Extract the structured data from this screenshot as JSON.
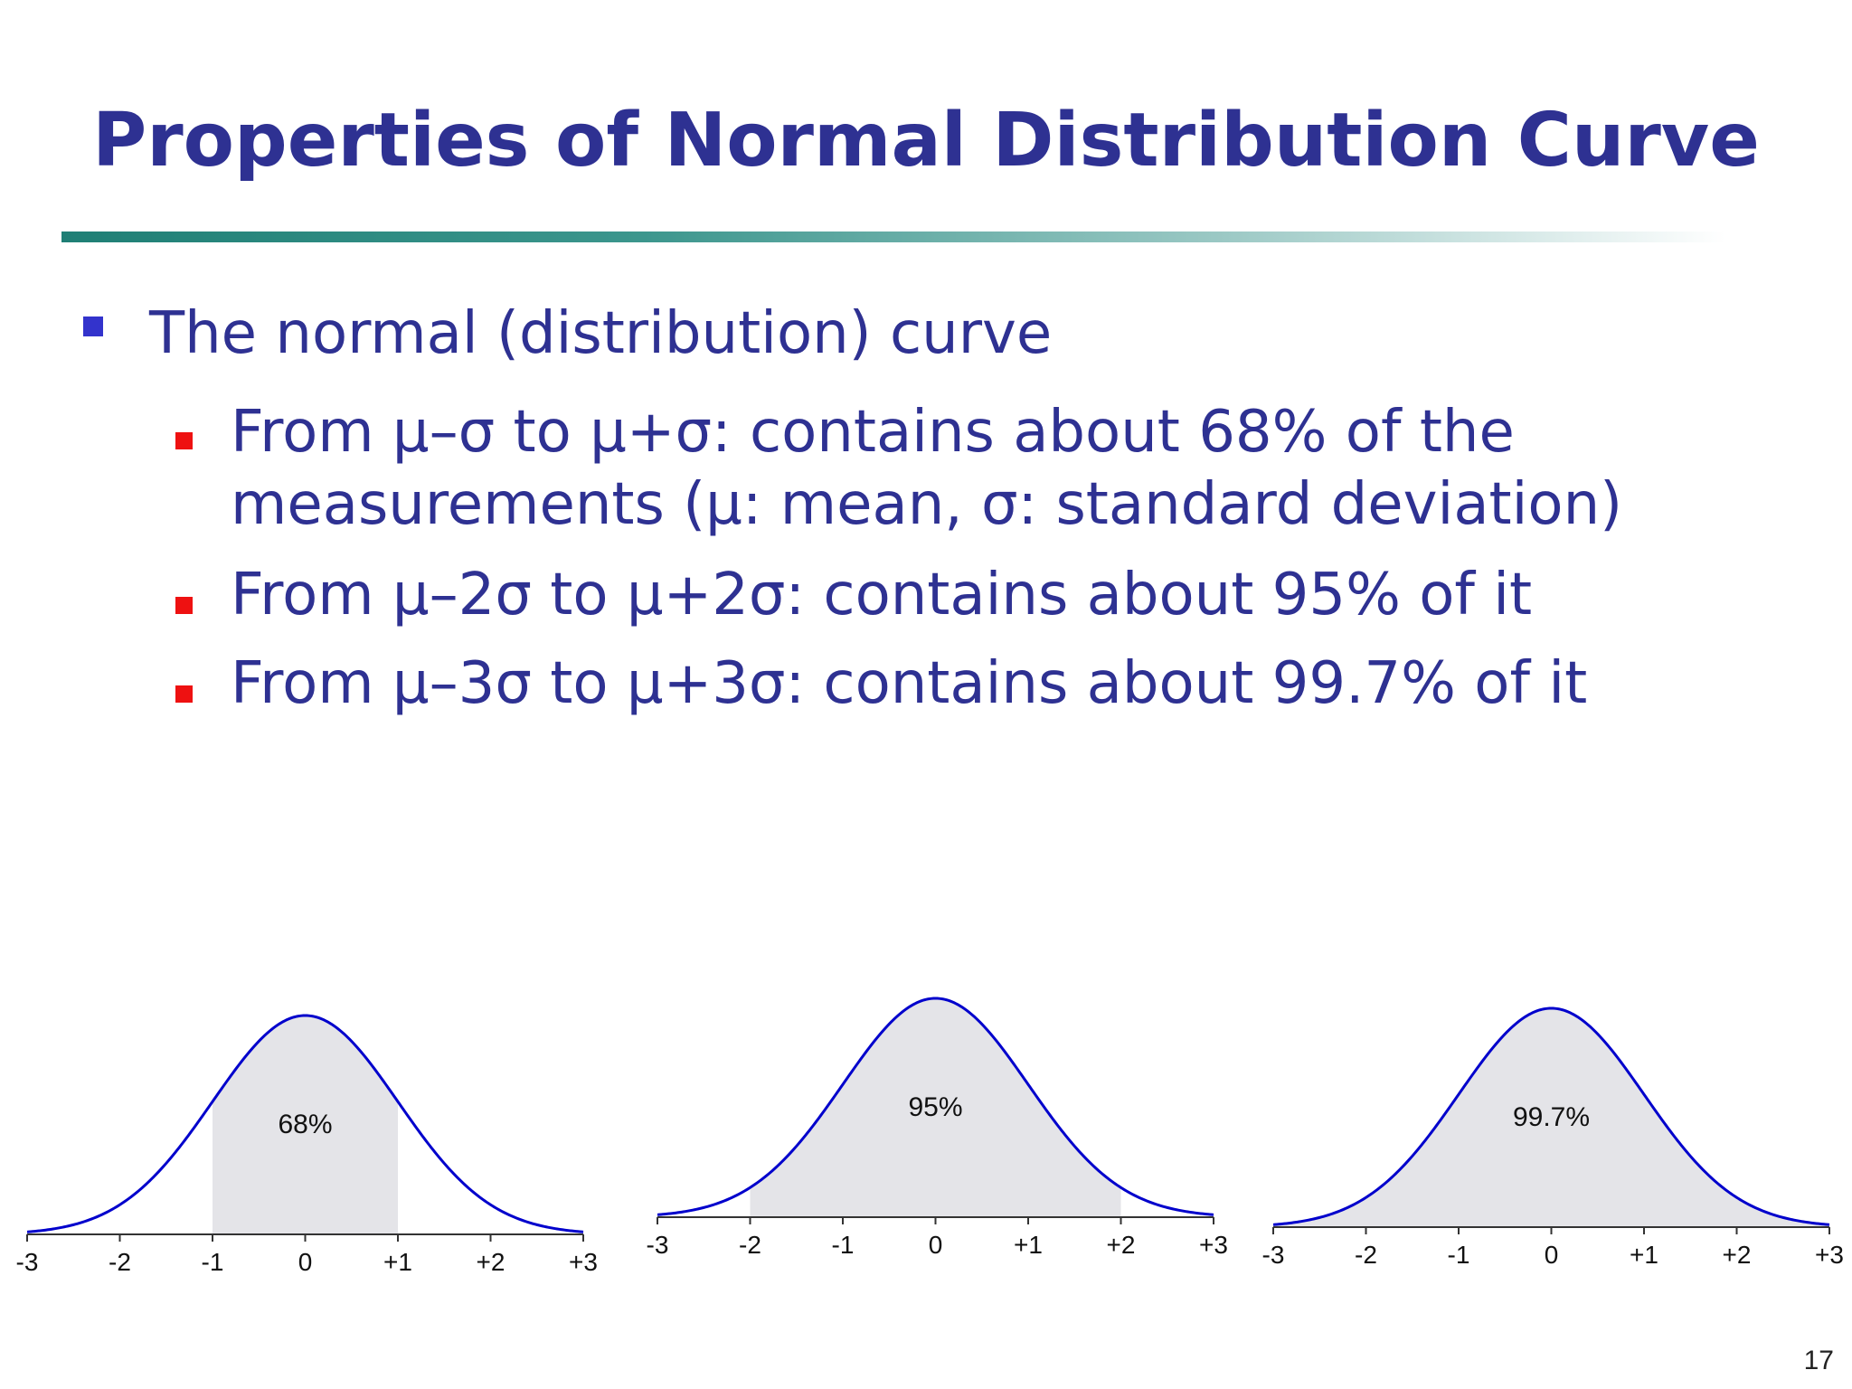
{
  "slide": {
    "title": "Properties of Normal Distribution Curve",
    "page_number": "17",
    "colors": {
      "title": "#2e3192",
      "text": "#2e3192",
      "bullet_l1": "#3333cc",
      "bullet_l2": "#ee1111",
      "curve": "#0000cc",
      "fill": "#e4e4e8"
    }
  },
  "bullets": {
    "main": "The normal (distribution) curve",
    "sub": [
      {
        "lines": [
          "From μ–σ to μ+σ: contains about 68% of the",
          "measurements  (μ: mean, σ: standard deviation)"
        ]
      },
      {
        "lines": [
          " From μ–2σ to μ+2σ: contains about 95% of it"
        ]
      },
      {
        "lines": [
          "From μ–3σ to μ+3σ: contains about 99.7% of it"
        ]
      }
    ]
  },
  "chart_data": [
    {
      "type": "area",
      "x_ticks": [
        "-3",
        "-2",
        "-1",
        "0",
        "+1",
        "+2",
        "+3"
      ],
      "xlim": [
        -3,
        3
      ],
      "shaded_range": [
        -1,
        1
      ],
      "label": "68%"
    },
    {
      "type": "area",
      "x_ticks": [
        "-3",
        "-2",
        "-1",
        "0",
        "+1",
        "+2",
        "+3"
      ],
      "xlim": [
        -3,
        3
      ],
      "shaded_range": [
        -2,
        2
      ],
      "label": "95%"
    },
    {
      "type": "area",
      "x_ticks": [
        "-3",
        "-2",
        "-1",
        "0",
        "+1",
        "+2",
        "+3"
      ],
      "xlim": [
        -3,
        3
      ],
      "shaded_range": [
        -3,
        3
      ],
      "label": "99.7%"
    }
  ]
}
